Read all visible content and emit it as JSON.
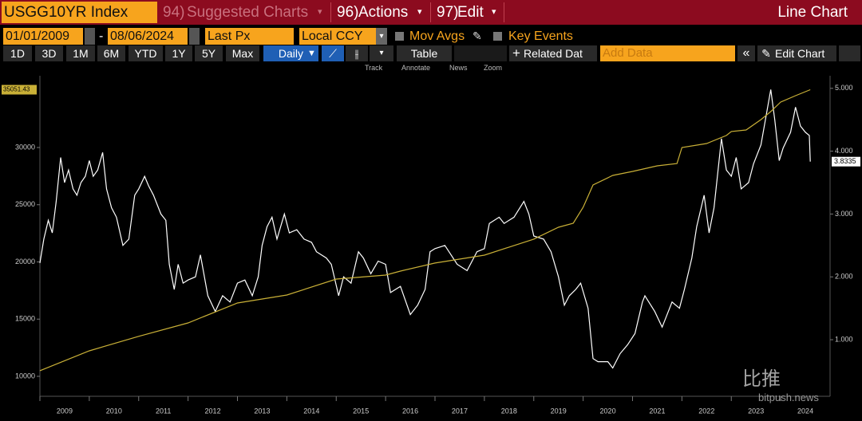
{
  "header": {
    "ticker": "USGG10YR Index",
    "menus": [
      {
        "num": "94)",
        "label": "Suggested Charts"
      },
      {
        "num": "96)",
        "label": "Actions"
      },
      {
        "num": "97)",
        "label": "Edit"
      }
    ],
    "view": "Line Chart"
  },
  "controls": {
    "start": "01/01/2009",
    "end": "08/06/2024",
    "field": "Last Px",
    "currency": "Local CCY",
    "mov_avgs": "Mov Avgs",
    "key_events": "Key Events"
  },
  "toolbar": {
    "periods": [
      "1D",
      "3D",
      "1M",
      "6M",
      "YTD",
      "1Y",
      "5Y",
      "Max"
    ],
    "frequency": "Daily",
    "table": "Table",
    "related": "Related Dat",
    "add_data": "Add Data",
    "edit_chart": "Edit Chart"
  },
  "chart_tools": [
    "Track",
    "Annotate",
    "News",
    "Zoom"
  ],
  "watermark": {
    "cn": "比推",
    "site": "bitpush.news"
  },
  "chart_data": {
    "type": "line",
    "xlim": [
      2009,
      2025
    ],
    "xticks": [
      2009,
      2010,
      2011,
      2012,
      2013,
      2014,
      2015,
      2016,
      2017,
      2018,
      2019,
      2020,
      2021,
      2022,
      2023,
      2024
    ],
    "ylim": [
      8256,
      36272
    ],
    "yticks": [
      10000,
      15000,
      20000,
      25000,
      30000
    ],
    "y2lim": [
      0.1,
      5.2
    ],
    "y2ticks": [
      {
        "value": 1,
        "label": "1.000"
      },
      {
        "value": 2,
        "label": "2.000"
      },
      {
        "value": 3,
        "label": "3.000"
      },
      {
        "value": 4,
        "label": "4.000"
      },
      {
        "value": 5,
        "label": "5.000"
      }
    ],
    "grid": false,
    "series": [
      {
        "color": "#ffffff",
        "axis": "y2",
        "x": [
          2009.0,
          2009.08,
          2009.17,
          2009.25,
          2009.33,
          2009.42,
          2009.5,
          2009.58,
          2009.67,
          2009.75,
          2009.83,
          2009.92,
          2010.0,
          2010.08,
          2010.17,
          2010.27,
          2010.35,
          2010.45,
          2010.55,
          2010.68,
          2010.8,
          2010.92,
          2011.0,
          2011.12,
          2011.2,
          2011.3,
          2011.45,
          2011.55,
          2011.62,
          2011.72,
          2011.8,
          2011.9,
          2012.0,
          2012.15,
          2012.25,
          2012.4,
          2012.55,
          2012.7,
          2012.85,
          2013.0,
          2013.15,
          2013.3,
          2013.42,
          2013.5,
          2013.6,
          2013.7,
          2013.8,
          2013.95,
          2014.05,
          2014.2,
          2014.35,
          2014.5,
          2014.6,
          2014.8,
          2014.9,
          2015.05,
          2015.15,
          2015.3,
          2015.45,
          2015.55,
          2015.7,
          2015.85,
          2016.0,
          2016.1,
          2016.3,
          2016.5,
          2016.65,
          2016.8,
          2016.9,
          2017.0,
          2017.2,
          2017.45,
          2017.65,
          2017.85,
          2018.0,
          2018.1,
          2018.3,
          2018.4,
          2018.6,
          2018.8,
          2018.9,
          2019.0,
          2019.2,
          2019.35,
          2019.5,
          2019.62,
          2019.72,
          2019.85,
          2019.95,
          2020.1,
          2020.2,
          2020.3,
          2020.5,
          2020.6,
          2020.75,
          2020.9,
          2021.05,
          2021.2,
          2021.25,
          2021.45,
          2021.6,
          2021.8,
          2021.95,
          2022.05,
          2022.2,
          2022.3,
          2022.45,
          2022.55,
          2022.65,
          2022.8,
          2022.9,
          2023.0,
          2023.1,
          2023.2,
          2023.35,
          2023.45,
          2023.6,
          2023.8,
          2023.88,
          2023.97,
          2024.05,
          2024.2,
          2024.3,
          2024.4,
          2024.5,
          2024.58,
          2024.6
        ],
        "values": [
          2.22,
          2.6,
          2.9,
          2.7,
          3.2,
          3.9,
          3.5,
          3.7,
          3.4,
          3.3,
          3.5,
          3.6,
          3.85,
          3.6,
          3.7,
          3.98,
          3.4,
          3.1,
          2.95,
          2.5,
          2.6,
          3.3,
          3.4,
          3.6,
          3.45,
          3.3,
          3.0,
          2.9,
          2.2,
          1.8,
          2.2,
          1.9,
          1.95,
          2.0,
          2.35,
          1.7,
          1.45,
          1.7,
          1.6,
          1.9,
          1.95,
          1.7,
          2.0,
          2.5,
          2.8,
          2.95,
          2.6,
          3.0,
          2.7,
          2.75,
          2.6,
          2.55,
          2.4,
          2.3,
          2.2,
          1.7,
          2.0,
          1.9,
          2.4,
          2.3,
          2.05,
          2.25,
          2.2,
          1.75,
          1.85,
          1.4,
          1.55,
          1.8,
          2.4,
          2.45,
          2.5,
          2.2,
          2.1,
          2.4,
          2.45,
          2.85,
          2.95,
          2.85,
          2.95,
          3.2,
          3.0,
          2.65,
          2.6,
          2.4,
          2.0,
          1.55,
          1.7,
          1.8,
          1.9,
          1.5,
          0.7,
          0.65,
          0.65,
          0.55,
          0.78,
          0.92,
          1.1,
          1.6,
          1.7,
          1.45,
          1.2,
          1.6,
          1.5,
          1.8,
          2.3,
          2.8,
          3.3,
          2.7,
          3.1,
          4.2,
          3.7,
          3.6,
          3.9,
          3.4,
          3.5,
          3.8,
          4.1,
          4.98,
          4.5,
          3.85,
          4.05,
          4.3,
          4.7,
          4.4,
          4.3,
          4.25,
          3.8335
        ]
      },
      {
        "color": "#c9b037",
        "x": [
          2009.0,
          2010.0,
          2011.0,
          2012.0,
          2013.0,
          2014.0,
          2015.0,
          2016.0,
          2016.3,
          2017.0,
          2018.0,
          2019.0,
          2019.5,
          2019.8,
          2020.0,
          2020.2,
          2020.6,
          2021.0,
          2021.5,
          2021.9,
          2022.0,
          2022.5,
          2022.9,
          2023.0,
          2023.3,
          2023.6,
          2023.8,
          2024.0,
          2024.3,
          2024.6
        ],
        "values": [
          10490,
          12230,
          13500,
          14670,
          16410,
          17110,
          18500,
          18850,
          19200,
          19900,
          20590,
          21990,
          23030,
          23380,
          24770,
          26725,
          27560,
          27910,
          28400,
          28600,
          30000,
          30350,
          31050,
          31400,
          31530,
          32440,
          33140,
          33970,
          34530,
          35051.43
        ]
      }
    ]
  }
}
